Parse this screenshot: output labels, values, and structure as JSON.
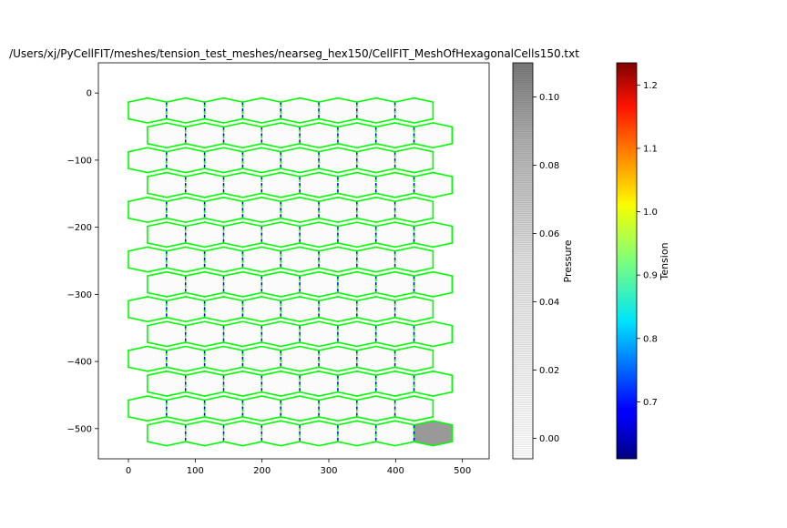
{
  "title": "/Users/xj/PyCellFIT/meshes/tension_test_meshes/nearseg_hex150/CellFIT_MeshOfHexagonalCells150.txt",
  "chart_data": {
    "type": "mesh",
    "title": "/Users/xj/PyCellFIT/meshes/tension_test_meshes/nearseg_hex150/CellFIT_MeshOfHexagonalCells150.txt",
    "xlabel": "",
    "ylabel": "",
    "xlim": [
      -45,
      540
    ],
    "ylim": [
      -545,
      45
    ],
    "x_ticks": [
      0,
      100,
      200,
      300,
      400,
      500
    ],
    "y_ticks": [
      0,
      -100,
      -200,
      -300,
      -400,
      -500
    ],
    "x_tick_labels": [
      "0",
      "100",
      "200",
      "300",
      "400",
      "500"
    ],
    "y_tick_labels": [
      "0",
      "−100",
      "−200",
      "−300",
      "−400",
      "−500"
    ],
    "mesh": {
      "rows": 14,
      "cols_even_rows": 8,
      "cols_odd_rows": 8,
      "hex_width": 57,
      "row_spacing": 37,
      "first_center": [
        28.5,
        -26
      ],
      "odd_row_offset": 28.5,
      "boundary_tension_color": "#00ff00",
      "cell_fill": "#fbfbfb",
      "pressurized_cell": {
        "row": 13,
        "col": 7,
        "pressure": 0.1,
        "fill": "#999999"
      }
    },
    "colorbars": [
      {
        "name": "pressure-colorbar",
        "label": "Pressure",
        "min": -0.006,
        "max": 0.11,
        "ticks": [
          0.0,
          0.02,
          0.04,
          0.06,
          0.08,
          0.1
        ],
        "tick_labels": [
          "0.00",
          "0.02",
          "0.04",
          "0.06",
          "0.08",
          "0.10"
        ],
        "colormap": "Greys"
      },
      {
        "name": "tension-colorbar",
        "label": "Tension",
        "min": 0.61,
        "max": 1.235,
        "ticks": [
          0.7,
          0.8,
          0.9,
          1.0,
          1.1,
          1.2
        ],
        "tick_labels": [
          "0.7",
          "0.8",
          "0.9",
          "1.0",
          "1.1",
          "1.2"
        ],
        "colormap": "jet"
      }
    ]
  }
}
